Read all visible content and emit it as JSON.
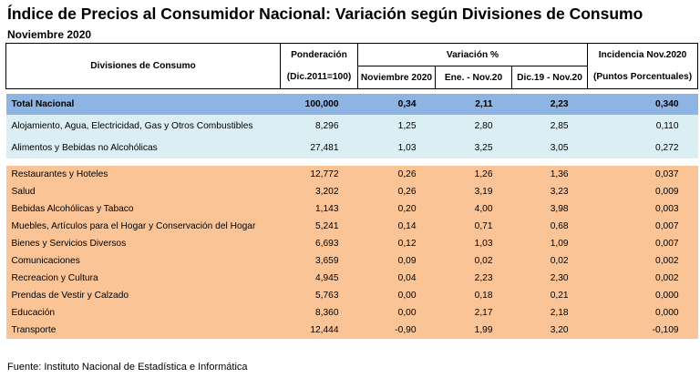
{
  "title": "Índice de Precios al Consumidor Nacional: Variación según Divisiones de Consumo",
  "subtitle": "Noviembre 2020",
  "headers": {
    "divisiones": "Divisiones de Consumo",
    "ponderacion": "Ponderación",
    "ponderacion_sub": "(Dic.2011=100)",
    "variacion": "Variación %",
    "nov2020": "Noviembre 2020",
    "ene_nov": "Ene. - Nov.20",
    "dic_nov": "Dic.19 - Nov.20",
    "incidencia": "Incidencia Nov.2020",
    "incidencia_sub": "(Puntos Porcentuales)"
  },
  "total": {
    "name": "Total Nacional",
    "pond": "100,000",
    "nov": "0,34",
    "ene": "2,11",
    "dic": "2,23",
    "inc": "0,340"
  },
  "blue_rows": [
    {
      "name": "Alojamiento, Agua, Electricidad, Gas y Otros Combustibles",
      "pond": "8,296",
      "nov": "1,25",
      "ene": "2,80",
      "dic": "2,85",
      "inc": "0,110"
    },
    {
      "name": "Alimentos y Bebidas no Alcohólicas",
      "pond": "27,481",
      "nov": "1,03",
      "ene": "3,25",
      "dic": "3,05",
      "inc": "0,272"
    }
  ],
  "orange_rows": [
    {
      "name": "Restaurantes y Hoteles",
      "pond": "12,772",
      "nov": "0,26",
      "ene": "1,26",
      "dic": "1,36",
      "inc": "0,037"
    },
    {
      "name": "Salud",
      "pond": "3,202",
      "nov": "0,26",
      "ene": "3,19",
      "dic": "3,23",
      "inc": "0,009"
    },
    {
      "name": "Bebidas Alcohólicas y Tabaco",
      "pond": "1,143",
      "nov": "0,20",
      "ene": "4,00",
      "dic": "3,98",
      "inc": "0,003"
    },
    {
      "name": "Muebles, Artículos para el Hogar y Conservación del Hogar",
      "pond": "5,241",
      "nov": "0,14",
      "ene": "0,71",
      "dic": "0,68",
      "inc": "0,007"
    },
    {
      "name": "Bienes y Servicios Diversos",
      "pond": "6,693",
      "nov": "0,12",
      "ene": "1,03",
      "dic": "1,09",
      "inc": "0,007"
    },
    {
      "name": "Comunicaciones",
      "pond": "3,659",
      "nov": "0,09",
      "ene": "0,02",
      "dic": "0,02",
      "inc": "0,002"
    },
    {
      "name": "Recreacion y Cultura",
      "pond": "4,945",
      "nov": "0,04",
      "ene": "2,23",
      "dic": "2,30",
      "inc": "0,002"
    },
    {
      "name": "Prendas de Vestir y Calzado",
      "pond": "5,763",
      "nov": "0,00",
      "ene": "0,18",
      "dic": "0,21",
      "inc": "0,000"
    },
    {
      "name": "Educación",
      "pond": "8,360",
      "nov": "0,00",
      "ene": "2,17",
      "dic": "2,18",
      "inc": "0,000"
    },
    {
      "name": "Transporte",
      "pond": "12,444",
      "nov": "-0,90",
      "ene": "1,99",
      "dic": "3,20",
      "inc": "-0,109"
    }
  ],
  "source": "Fuente: Instituto Nacional de Estadística e Informática"
}
